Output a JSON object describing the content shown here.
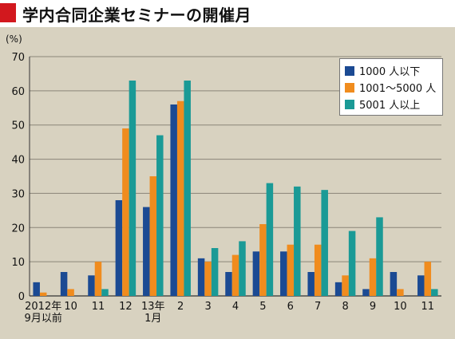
{
  "title": "学内合同企業セミナーの開催月",
  "colors": {
    "title_marker": "#d2181e",
    "background": "#d8d2c0",
    "series": [
      "#1b4a93",
      "#f08c1e",
      "#1a9a96"
    ]
  },
  "chart_data": {
    "type": "bar",
    "title": "学内合同企業セミナーの開催月",
    "ylabel": "(%)",
    "xlabel": "",
    "ylim": [
      0,
      70
    ],
    "yticks": [
      0,
      10,
      20,
      30,
      40,
      50,
      60,
      70
    ],
    "grid": true,
    "legend_position": "top-right",
    "categories": [
      [
        "2012年",
        "9月以前"
      ],
      [
        "10"
      ],
      [
        "11"
      ],
      [
        "12"
      ],
      [
        "13年",
        "1月"
      ],
      [
        "2"
      ],
      [
        "3"
      ],
      [
        "4"
      ],
      [
        "5"
      ],
      [
        "6"
      ],
      [
        "7"
      ],
      [
        "8"
      ],
      [
        "9"
      ],
      [
        "10"
      ],
      [
        "11"
      ]
    ],
    "series": [
      {
        "name": "1000 人以下",
        "values": [
          4,
          7,
          6,
          28,
          26,
          56,
          11,
          7,
          13,
          13,
          7,
          4,
          2,
          7,
          6
        ]
      },
      {
        "name": "1001～5000 人",
        "values": [
          1,
          2,
          10,
          49,
          35,
          57,
          10,
          12,
          21,
          15,
          15,
          6,
          11,
          2,
          10
        ]
      },
      {
        "name": "5001 人以上",
        "values": [
          0,
          0,
          2,
          63,
          47,
          63,
          14,
          16,
          33,
          32,
          31,
          19,
          23,
          0,
          2
        ]
      }
    ]
  }
}
